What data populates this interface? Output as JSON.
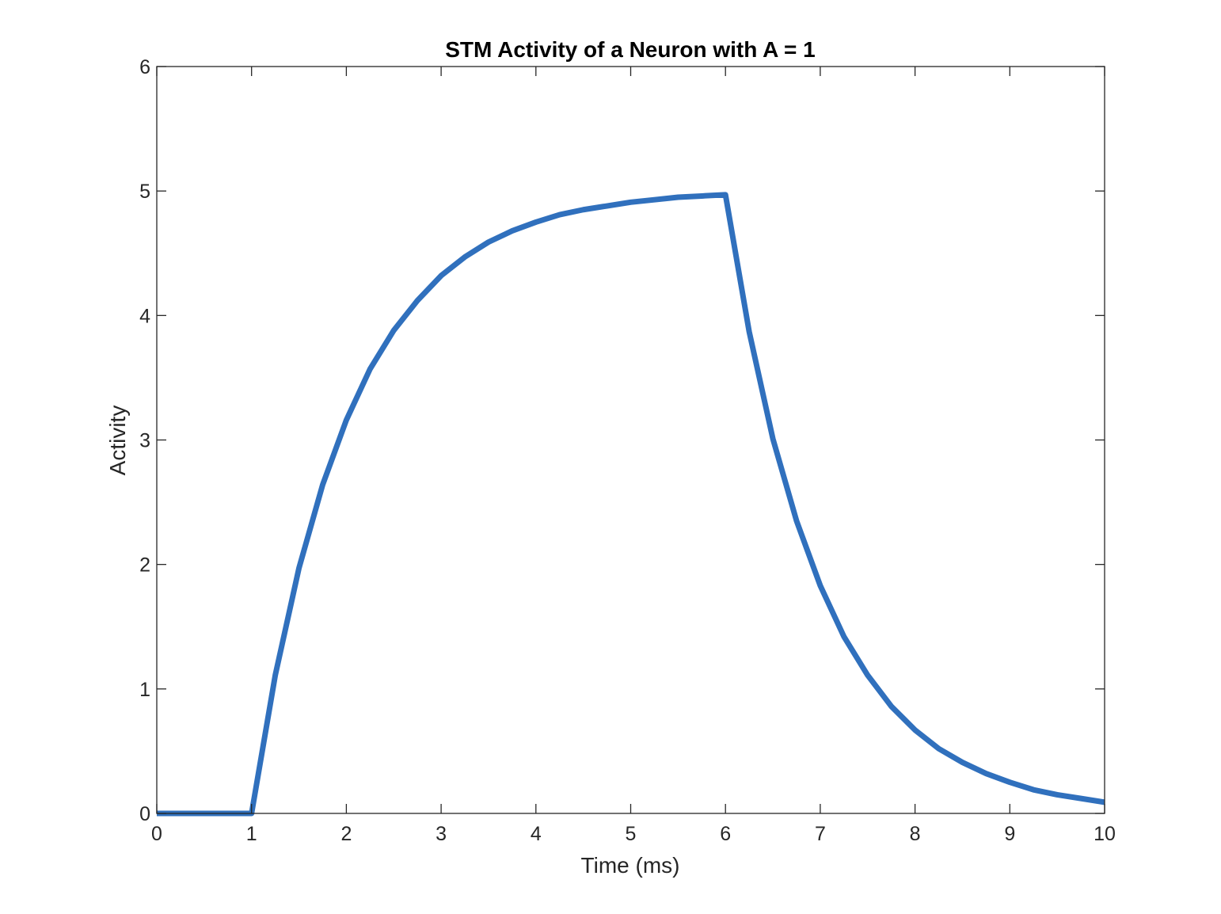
{
  "chart_data": {
    "type": "line",
    "title": "STM Activity of a Neuron with A = 1",
    "xlabel": "Time (ms)",
    "ylabel": "Activity",
    "xlim": [
      0,
      10
    ],
    "ylim": [
      0,
      6
    ],
    "xticks": [
      "0",
      "1",
      "2",
      "3",
      "4",
      "5",
      "6",
      "7",
      "8",
      "9",
      "10"
    ],
    "yticks": [
      "0",
      "1",
      "2",
      "3",
      "4",
      "5",
      "6"
    ],
    "grid": false,
    "series": [
      {
        "name": "Activity",
        "color": "#3070BD",
        "x": [
          0,
          0.5,
          1,
          1.25,
          1.5,
          1.75,
          2,
          2.25,
          2.5,
          2.75,
          3,
          3.25,
          3.5,
          3.75,
          4,
          4.25,
          4.5,
          4.75,
          5,
          5.25,
          5.5,
          5.75,
          6,
          6.25,
          6.5,
          6.75,
          7,
          7.25,
          7.5,
          7.75,
          8,
          8.25,
          8.5,
          8.75,
          9,
          9.25,
          9.5,
          9.75,
          10
        ],
        "values": [
          0,
          0,
          0,
          1.11,
          1.97,
          2.64,
          3.16,
          3.57,
          3.88,
          4.12,
          4.32,
          4.47,
          4.59,
          4.68,
          4.75,
          4.81,
          4.85,
          4.88,
          4.91,
          4.93,
          4.95,
          4.96,
          4.97,
          3.87,
          3.01,
          2.35,
          1.83,
          1.42,
          1.11,
          0.86,
          0.67,
          0.52,
          0.41,
          0.32,
          0.25,
          0.19,
          0.15,
          0.12,
          0.09
        ]
      }
    ]
  }
}
